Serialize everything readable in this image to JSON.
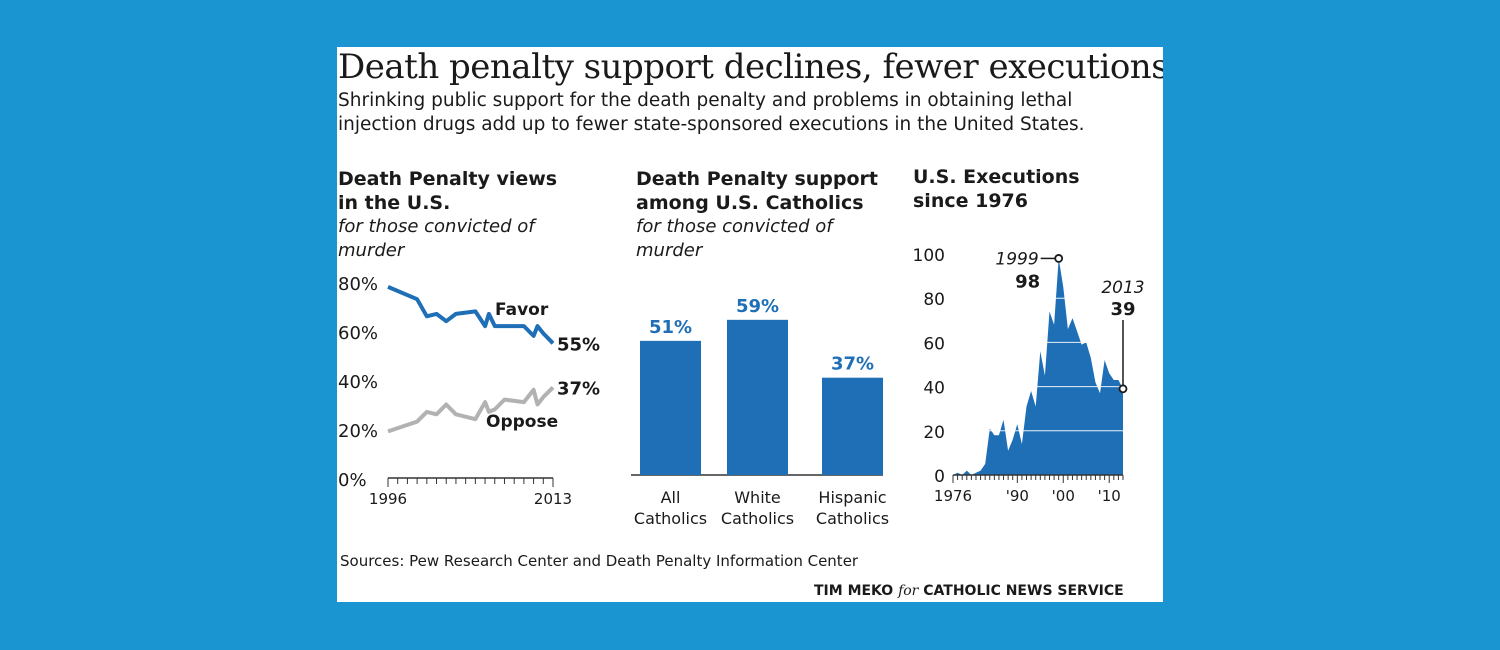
{
  "header": {
    "title": "Death penalty support declines, fewer executions",
    "deck": "Shrinking public support for the death penalty and problems in obtaining lethal injection drugs add up to fewer state-sponsored executions in the United States."
  },
  "colors": {
    "accent": "#1f6fb7",
    "gray": "#b2b2b2",
    "background": "#1a95d2"
  },
  "footer": {
    "sources": "Sources: Pew Research Center and Death Penalty Information Center",
    "credit_name": "TIM MEKO",
    "credit_for": "for",
    "credit_org": "CATHOLIC NEWS SERVICE"
  },
  "panels": {
    "views": {
      "title": "Death Penalty views in the U.S.",
      "subtitle": "for those convicted of murder"
    },
    "catholics": {
      "title": "Death Penalty support among U.S. Catholics",
      "subtitle": "for those convicted of murder"
    },
    "executions": {
      "title": "U.S. Executions since 1976"
    }
  },
  "chart_data": [
    {
      "type": "line",
      "title": "Death Penalty views in the U.S.",
      "subtitle": "for those convicted of murder",
      "x_tick_labels": [
        "1996",
        "2013"
      ],
      "y_tick_labels": [
        "80%",
        "60%",
        "40%",
        "20%",
        "0%"
      ],
      "ylim": [
        0,
        80
      ],
      "xlim": [
        1996,
        2013
      ],
      "series": [
        {
          "name": "Favor",
          "color": "#1f6fb7",
          "end_label": "55%",
          "x": [
            1996,
            1999,
            2000,
            2001,
            2002,
            2003,
            2005,
            2006,
            2006.4,
            2007,
            2008,
            2010,
            2011,
            2011.4,
            2012,
            2013
          ],
          "y": [
            78,
            73,
            66,
            67,
            64,
            67,
            68,
            62,
            67,
            62,
            62,
            62,
            58,
            62,
            59,
            55
          ]
        },
        {
          "name": "Oppose",
          "color": "#b2b2b2",
          "end_label": "37%",
          "x": [
            1996,
            1999,
            2000,
            2001,
            2002,
            2003,
            2005,
            2006,
            2006.4,
            2007,
            2008,
            2010,
            2011,
            2011.4,
            2012,
            2013
          ],
          "y": [
            19,
            23,
            27,
            26,
            30,
            26,
            24,
            31,
            27,
            28,
            32,
            31,
            36,
            30,
            33,
            37
          ]
        }
      ]
    },
    {
      "type": "bar",
      "title": "Death Penalty support among U.S. Catholics",
      "subtitle": "for those convicted of murder",
      "categories": [
        "All Catholics",
        "White Catholics",
        "Hispanic Catholics"
      ],
      "category_lines": [
        [
          "All",
          "Catholics"
        ],
        [
          "White",
          "Catholics"
        ],
        [
          "Hispanic",
          "Catholics"
        ]
      ],
      "values": [
        51,
        59,
        37
      ],
      "value_labels": [
        "51%",
        "59%",
        "37%"
      ],
      "color": "#1f6fb7"
    },
    {
      "type": "area",
      "title": "U.S. Executions since 1976",
      "x_tick_labels": [
        "1976",
        "'90",
        "'00",
        "'10"
      ],
      "x_tick_years": [
        1976,
        1990,
        2000,
        2010
      ],
      "y_ticks": [
        0,
        20,
        40,
        60,
        80,
        100
      ],
      "ylim": [
        0,
        100
      ],
      "xlim": [
        1976,
        2013
      ],
      "x": [
        1976,
        1977,
        1978,
        1979,
        1980,
        1981,
        1982,
        1983,
        1984,
        1985,
        1986,
        1987,
        1988,
        1989,
        1990,
        1991,
        1992,
        1993,
        1994,
        1995,
        1996,
        1997,
        1998,
        1999,
        2000,
        2001,
        2002,
        2003,
        2004,
        2005,
        2006,
        2007,
        2008,
        2009,
        2010,
        2011,
        2012,
        2013
      ],
      "y": [
        0,
        1,
        0,
        2,
        0,
        1,
        2,
        5,
        21,
        18,
        18,
        25,
        11,
        16,
        23,
        14,
        31,
        38,
        31,
        56,
        45,
        74,
        68,
        98,
        85,
        66,
        71,
        65,
        59,
        60,
        53,
        42,
        37,
        52,
        46,
        43,
        43,
        39
      ],
      "color": "#1f6fb7",
      "annotations": [
        {
          "year_label": "1999",
          "value_label": "98",
          "x": 1999,
          "y": 98
        },
        {
          "year_label": "2013",
          "value_label": "39",
          "x": 2013,
          "y": 39
        }
      ]
    }
  ]
}
